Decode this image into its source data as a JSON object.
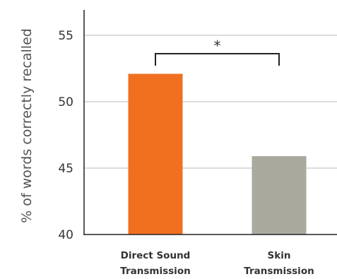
{
  "chart_data": {
    "type": "bar",
    "title": "",
    "xlabel": "",
    "ylabel": "% of words correctly recalled",
    "categories": [
      [
        "Direct Sound",
        "Transmission"
      ],
      [
        "Skin",
        "Transmission"
      ]
    ],
    "values": [
      52.1,
      45.9
    ],
    "colors": [
      "#f07020",
      "#aaa99d"
    ],
    "ylim": [
      40,
      57
    ],
    "yticks": [
      40,
      45,
      50,
      55
    ],
    "grid": true,
    "significance": {
      "between": [
        0,
        1
      ],
      "label": "*"
    }
  }
}
